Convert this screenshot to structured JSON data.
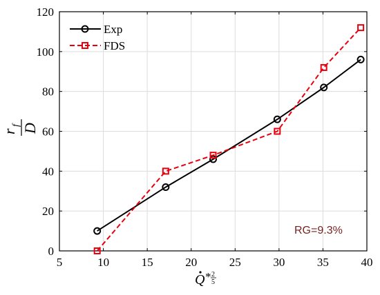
{
  "chart_data": {
    "type": "line",
    "xlim": [
      5,
      40
    ],
    "ylim": [
      0,
      120
    ],
    "xticks": [
      5,
      10,
      15,
      20,
      25,
      30,
      35,
      40
    ],
    "yticks": [
      0,
      20,
      40,
      60,
      80,
      100,
      120
    ],
    "grid": true,
    "legend_position": "top-left",
    "xlabel": {
      "base": "Q",
      "sup": "*",
      "exp_num": "2",
      "exp_den": "5"
    },
    "ylabel": {
      "num": "r",
      "num_sub": "f",
      "den": "D"
    },
    "series": [
      {
        "name": "Exp",
        "color": "#000000",
        "style": "solid",
        "marker": "circle",
        "x": [
          9.3,
          17.1,
          22.5,
          29.8,
          35.1,
          39.3
        ],
        "y": [
          10,
          32,
          46,
          66,
          82,
          96
        ]
      },
      {
        "name": "FDS",
        "color": "#e8000e",
        "style": "dashed",
        "marker": "square",
        "x": [
          9.3,
          17.1,
          22.5,
          29.8,
          35.1,
          39.3
        ],
        "y": [
          0,
          40,
          48,
          60,
          92,
          112
        ]
      }
    ],
    "annotation": "RG=9.3%"
  }
}
